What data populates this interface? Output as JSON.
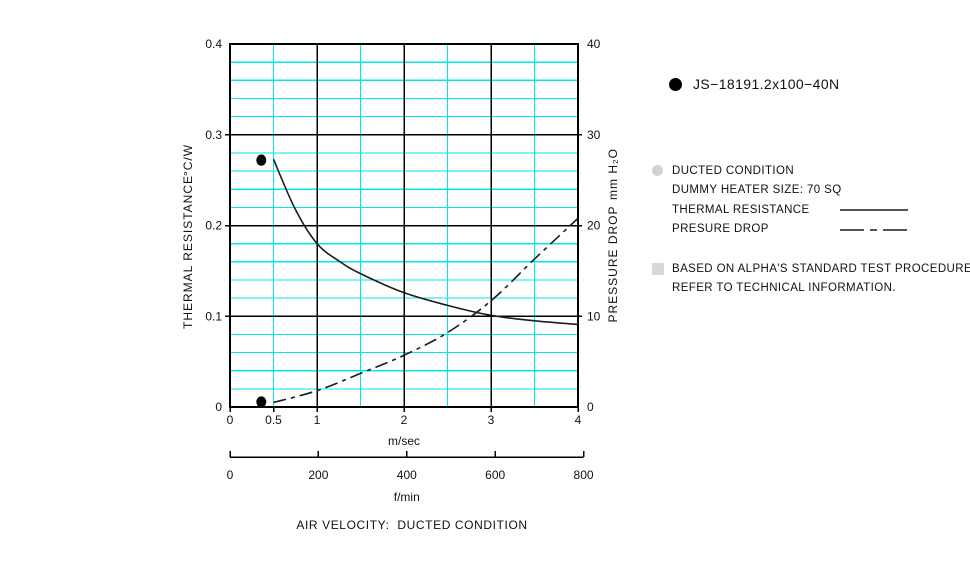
{
  "page": {
    "background": "#ffffff"
  },
  "legend": {
    "series_label": "JS−18191.2x100−40N"
  },
  "conditions": {
    "row1": "DUCTED CONDITION",
    "row2": "DUMMY HEATER SIZE: 70 SQ",
    "row3": "THERMAL RESISTANCE",
    "row4": "PRESURE DROP"
  },
  "notes": {
    "line1": "BASED ON ALPHA'S STANDARD TEST PROCEDURE.",
    "line2": "REFER TO TECHNICAL INFORMATION."
  },
  "chart_data": {
    "type": "line",
    "title": "AIR VELOCITY:  DUCTED CONDITION",
    "x_axis": {
      "label": "m/sec",
      "min": 0,
      "max": 4,
      "tick_labels": [
        "0",
        "0.5",
        "1",
        "2",
        "3",
        "4"
      ],
      "tick_values": [
        0,
        0.5,
        1,
        2,
        3,
        4
      ],
      "major_grid": [
        1,
        2,
        3
      ],
      "minor_grid": [
        0.5,
        1.5,
        2.5,
        3.5
      ]
    },
    "x_axis_secondary": {
      "label": "f/min",
      "tick_labels": [
        "0",
        "200",
        "400",
        "600",
        "800"
      ],
      "tick_values": [
        0,
        200,
        400,
        600,
        800
      ],
      "m_per_sec_per_unit": 0.00508
    },
    "y_axis_left": {
      "label": "THERMAL RESISTANCE",
      "unit": "°C/W",
      "min": 0,
      "max": 0.4,
      "tick_labels": [
        "0",
        "0.1",
        "0.2",
        "0.3",
        "0.4"
      ],
      "tick_values": [
        0,
        0.1,
        0.2,
        0.3,
        0.4
      ],
      "minor_step": 0.02
    },
    "y_axis_right": {
      "label": "PRESSURE DROP",
      "unit": "mm H₂O",
      "min": 0,
      "max": 40,
      "tick_labels": [
        "0",
        "10",
        "20",
        "30",
        "40"
      ],
      "tick_values": [
        0,
        10,
        20,
        30,
        40
      ]
    },
    "series": [
      {
        "name": "THERMAL RESISTANCE",
        "axis": "left",
        "line_style": "solid",
        "points": [
          [
            0.5,
            0.273
          ],
          [
            0.75,
            0.218
          ],
          [
            1.0,
            0.18
          ],
          [
            1.25,
            0.161
          ],
          [
            1.5,
            0.147
          ],
          [
            2.0,
            0.126
          ],
          [
            2.5,
            0.112
          ],
          [
            3.0,
            0.101
          ],
          [
            3.5,
            0.095
          ],
          [
            4.0,
            0.091
          ]
        ],
        "marker_point": [
          0.36,
          0.272
        ]
      },
      {
        "name": "PRESURE DROP",
        "axis": "right",
        "line_style": "dash-dot",
        "points": [
          [
            0.5,
            0.5
          ],
          [
            1.0,
            1.8
          ],
          [
            1.5,
            3.7
          ],
          [
            2.0,
            5.7
          ],
          [
            2.5,
            8.2
          ],
          [
            3.0,
            11.7
          ],
          [
            3.5,
            16.3
          ],
          [
            4.0,
            20.8
          ]
        ],
        "marker_point": [
          0.36,
          0.55
        ]
      }
    ],
    "grid": {
      "minor_color": "#00E8E8",
      "major_color": "#000000"
    },
    "curve_color": "#1c1c1c",
    "marker_color": "#000000",
    "text_color": "#111111"
  }
}
